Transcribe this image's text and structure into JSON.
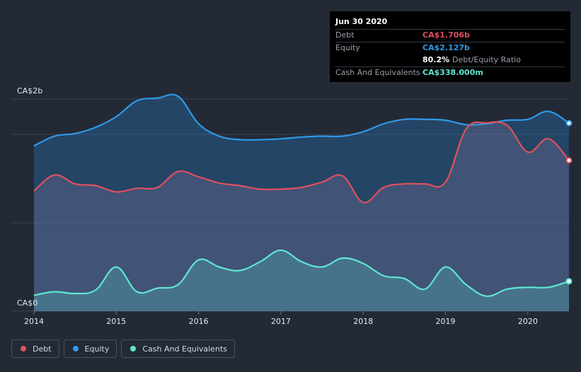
{
  "tooltip": {
    "date": "Jun 30 2020",
    "rows": [
      {
        "label": "Debt",
        "value": "CA$1.706b",
        "color": "#e0505f"
      },
      {
        "label": "Equity",
        "value": "CA$2.127b",
        "color": "#2f9ae8"
      },
      {
        "label": "",
        "value": "80.2%",
        "extra": "Debt/Equity Ratio",
        "color": "#ffffff"
      },
      {
        "label": "Cash And Equivalents",
        "value": "CA$338.000m",
        "color": "#5fe6d2"
      }
    ]
  },
  "legend": [
    {
      "label": "Debt",
      "color": "#e0505f"
    },
    {
      "label": "Equity",
      "color": "#2f9ae8"
    },
    {
      "label": "Cash And Equivalents",
      "color": "#5fe6d2"
    }
  ],
  "chart_data": {
    "type": "area",
    "y_tick_labels": [
      "CA$2b",
      "CA$0"
    ],
    "x_tick_labels": [
      "2014",
      "2015",
      "2016",
      "2017",
      "2018",
      "2019",
      "2020"
    ],
    "ylim": [
      0,
      2.4
    ],
    "xlim": [
      2014.0,
      2020.5
    ],
    "grid": true,
    "legend_position": "bottom-left",
    "series": [
      {
        "name": "Debt",
        "color": "#e0505f",
        "x": [
          2014.0,
          2014.25,
          2014.5,
          2014.75,
          2015.0,
          2015.25,
          2015.5,
          2015.75,
          2016.0,
          2016.25,
          2016.5,
          2016.75,
          2017.0,
          2017.25,
          2017.5,
          2017.75,
          2018.0,
          2018.25,
          2018.5,
          2018.75,
          2019.0,
          2019.25,
          2019.5,
          2019.75,
          2020.0,
          2020.25,
          2020.5
        ],
        "values": [
          1.36,
          1.54,
          1.44,
          1.42,
          1.35,
          1.39,
          1.4,
          1.58,
          1.52,
          1.45,
          1.42,
          1.38,
          1.38,
          1.4,
          1.46,
          1.53,
          1.23,
          1.4,
          1.44,
          1.44,
          1.46,
          2.06,
          2.13,
          2.1,
          1.8,
          1.95,
          1.706
        ]
      },
      {
        "name": "Equity",
        "color": "#2f9ae8",
        "x": [
          2014.0,
          2014.25,
          2014.5,
          2014.75,
          2015.0,
          2015.25,
          2015.5,
          2015.75,
          2016.0,
          2016.25,
          2016.5,
          2016.75,
          2017.0,
          2017.25,
          2017.5,
          2017.75,
          2018.0,
          2018.25,
          2018.5,
          2018.75,
          2019.0,
          2019.25,
          2019.5,
          2019.75,
          2020.0,
          2020.25,
          2020.5
        ],
        "values": [
          1.87,
          1.98,
          2.01,
          2.08,
          2.2,
          2.38,
          2.41,
          2.43,
          2.12,
          1.98,
          1.94,
          1.94,
          1.95,
          1.97,
          1.98,
          1.98,
          2.03,
          2.12,
          2.17,
          2.17,
          2.16,
          2.11,
          2.12,
          2.16,
          2.17,
          2.26,
          2.127
        ]
      },
      {
        "name": "Cash And Equivalents",
        "color": "#5fe6d2",
        "x": [
          2014.0,
          2014.25,
          2014.5,
          2014.75,
          2015.0,
          2015.25,
          2015.5,
          2015.75,
          2016.0,
          2016.25,
          2016.5,
          2016.75,
          2017.0,
          2017.25,
          2017.5,
          2017.75,
          2018.0,
          2018.25,
          2018.5,
          2018.75,
          2019.0,
          2019.25,
          2019.5,
          2019.75,
          2020.0,
          2020.25,
          2020.5
        ],
        "values": [
          0.18,
          0.22,
          0.2,
          0.24,
          0.5,
          0.22,
          0.26,
          0.3,
          0.58,
          0.5,
          0.46,
          0.56,
          0.69,
          0.56,
          0.5,
          0.6,
          0.54,
          0.4,
          0.37,
          0.25,
          0.5,
          0.3,
          0.17,
          0.25,
          0.27,
          0.27,
          0.338
        ]
      }
    ]
  }
}
